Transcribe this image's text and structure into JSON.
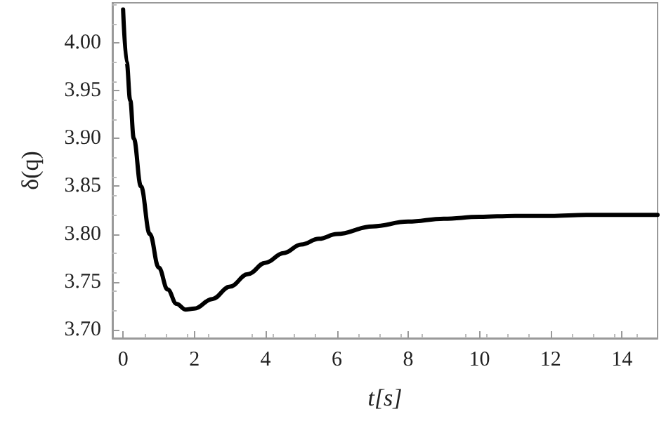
{
  "chart_data": {
    "type": "line",
    "xlabel": "t[s]",
    "ylabel": "δ(q)",
    "x": [
      0,
      0.1,
      0.2,
      0.3,
      0.5,
      0.75,
      1,
      1.25,
      1.5,
      1.75,
      2,
      2.5,
      3,
      3.5,
      4,
      4.5,
      5,
      5.5,
      6,
      7,
      8,
      9,
      10,
      11,
      12,
      13,
      14,
      15
    ],
    "series": [
      {
        "color": "#000000",
        "values": [
          4.035,
          3.98,
          3.94,
          3.9,
          3.85,
          3.8,
          3.765,
          3.742,
          3.727,
          3.721,
          3.722,
          3.732,
          3.745,
          3.758,
          3.77,
          3.78,
          3.789,
          3.795,
          3.8,
          3.808,
          3.813,
          3.816,
          3.818,
          3.819,
          3.819,
          3.82,
          3.82,
          3.82
        ]
      }
    ],
    "xlim": [
      -0.3,
      15
    ],
    "ylim": [
      3.691,
      4.042
    ],
    "xticks": [
      0,
      2,
      4,
      6,
      8,
      10,
      12,
      14
    ],
    "yticks": [
      {
        "value": 3.7,
        "label": "3.70"
      },
      {
        "value": 3.75,
        "label": "3.75"
      },
      {
        "value": 3.8,
        "label": "3.80"
      },
      {
        "value": 3.85,
        "label": "3.85"
      },
      {
        "value": 3.9,
        "label": "3.90"
      },
      {
        "value": 3.95,
        "label": "3.95"
      },
      {
        "value": 4,
        "label": "4.00"
      }
    ],
    "grid": false,
    "marker": "none",
    "line_style": "solid"
  }
}
